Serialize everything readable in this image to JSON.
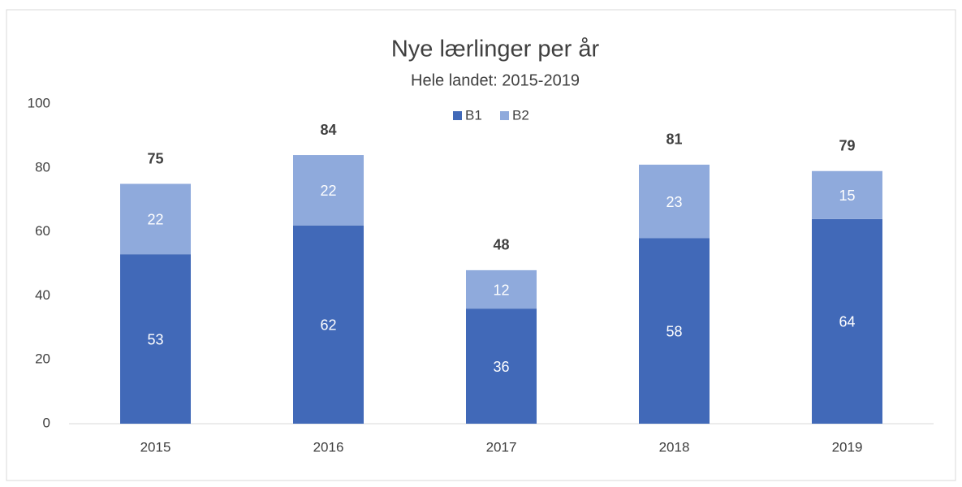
{
  "chart_data": {
    "type": "stacked_bar",
    "title": "Nye lærlinger per år",
    "subtitle": "Hele landet: 2015-2019",
    "categories": [
      "2015",
      "2016",
      "2017",
      "2018",
      "2019"
    ],
    "series": [
      {
        "name": "B1",
        "color": "#4169b8",
        "values": [
          53,
          62,
          36,
          58,
          64
        ]
      },
      {
        "name": "B2",
        "color": "#8faadc",
        "values": [
          22,
          22,
          12,
          23,
          15
        ]
      }
    ],
    "totals": [
      75,
      84,
      48,
      81,
      79
    ],
    "ylim": [
      0,
      100
    ],
    "yticks": [
      0,
      20,
      40,
      60,
      80,
      100
    ],
    "grid": false,
    "legend": "top"
  }
}
